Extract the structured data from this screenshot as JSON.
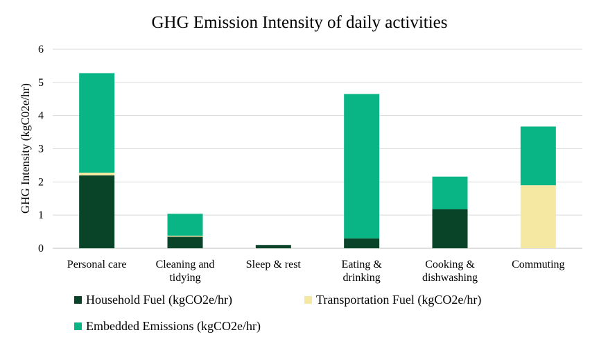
{
  "chart_data": {
    "type": "bar",
    "stacked": true,
    "title": "GHG Emission Intensity of daily activities",
    "xlabel": "",
    "ylabel": "GHG Intensity (kgC02e/hr)",
    "ylim": [
      0,
      6
    ],
    "yticks": [
      0,
      1,
      2,
      3,
      4,
      5,
      6
    ],
    "grid": true,
    "legend_position": "bottom",
    "categories": [
      [
        "Personal care"
      ],
      [
        "Cleaning and",
        "tidying"
      ],
      [
        "Sleep & rest"
      ],
      [
        "Eating &",
        "drinking"
      ],
      [
        "Cooking &",
        "dishwashing"
      ],
      [
        "Commuting"
      ]
    ],
    "series": [
      {
        "name": "Household Fuel (kgCO2e/hr)",
        "color": "#0a4428",
        "values": [
          2.2,
          0.35,
          0.1,
          0.3,
          1.18,
          0.0
        ]
      },
      {
        "name": "Transportation Fuel (kgCO2e/hr)",
        "color": "#f5e8a3",
        "values": [
          0.08,
          0.03,
          0.0,
          0.0,
          0.0,
          1.9
        ]
      },
      {
        "name": "Embedded Emissions (kgCO2e/hr)",
        "color": "#09b585",
        "values": [
          3.0,
          0.66,
          0.0,
          4.35,
          0.98,
          1.77
        ]
      }
    ]
  }
}
